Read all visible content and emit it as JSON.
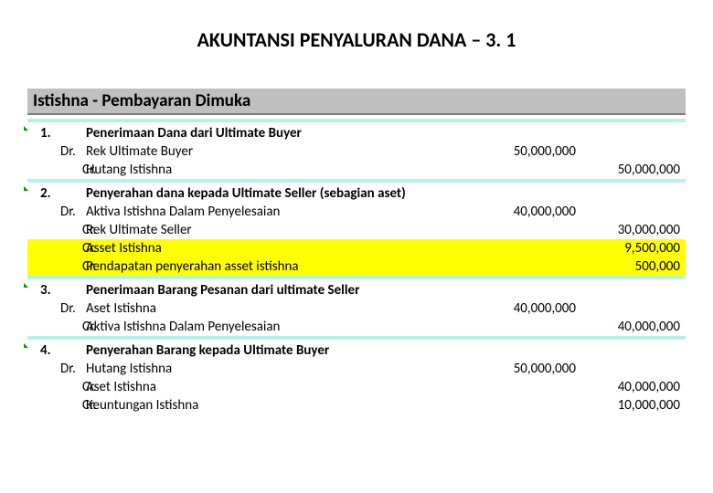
{
  "title": "AKUNTANSI PENYALURAN DANA – 3. 1",
  "section_header": "Istishna - Pembayaran Dimuka",
  "colors": {
    "header_bg": "#bfbfbf",
    "header_border": "#7f7f7f",
    "separator": "#b7f0e8",
    "highlight": "#ffff00",
    "triangle": "#009900",
    "text": "#000000",
    "bg": "#ffffff"
  },
  "groups": [
    {
      "num": "1.",
      "heading": "Penerimaan Dana dari Ultimate Buyer",
      "lines": [
        {
          "type": "Dr.",
          "desc": "Rek Ultimate Buyer",
          "dr": "50,000,000",
          "cr": "",
          "highlight": false
        },
        {
          "type": "Cr.",
          "desc": "Hutang Istishna",
          "dr": "",
          "cr": "50,000,000",
          "highlight": false
        }
      ]
    },
    {
      "num": "2.",
      "heading": "Penyerahan dana kepada Ultimate Seller (sebagian aset)",
      "lines": [
        {
          "type": "Dr.",
          "desc": "Aktiva Istishna Dalam Penyelesaian",
          "dr": "40,000,000",
          "cr": "",
          "highlight": false
        },
        {
          "type": "Cr.",
          "desc": "Rek Ultimate Seller",
          "dr": "",
          "cr": "30,000,000",
          "highlight": false
        },
        {
          "type": "Cr.",
          "desc": "Asset Istishna",
          "dr": "",
          "cr": "9,500,000",
          "highlight": true
        },
        {
          "type": "Cr.",
          "desc": "Pendapatan penyerahan asset istishna",
          "dr": "",
          "cr": "500,000",
          "highlight": true
        }
      ]
    },
    {
      "num": "3.",
      "heading": "Penerimaan Barang Pesanan dari ultimate Seller",
      "lines": [
        {
          "type": "Dr.",
          "desc": "Aset Istishna",
          "dr": "40,000,000",
          "cr": "",
          "highlight": false
        },
        {
          "type": "Cr.",
          "desc": "Aktiva Istishna Dalam Penyelesaian",
          "dr": "",
          "cr": "40,000,000",
          "highlight": false
        }
      ]
    },
    {
      "num": "4.",
      "heading": "Penyerahan Barang kepada Ultimate Buyer",
      "lines": [
        {
          "type": "Dr.",
          "desc": "Hutang Istishna",
          "dr": "50,000,000",
          "cr": "",
          "highlight": false
        },
        {
          "type": "Cr.",
          "desc": "Aset Istishna",
          "dr": "",
          "cr": "40,000,000",
          "highlight": false
        },
        {
          "type": "Cr.",
          "desc": "Keuntungan Istishna",
          "dr": "",
          "cr": "10,000,000",
          "highlight": false
        }
      ]
    }
  ]
}
